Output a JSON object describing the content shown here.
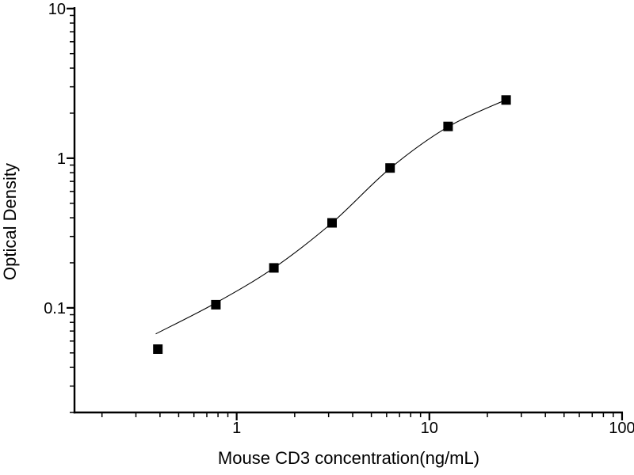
{
  "figure": {
    "background_color": "#ffffff",
    "foreground_color": "#000000"
  },
  "chart_data": {
    "type": "scatter",
    "title": "",
    "xlabel": "Mouse CD3 concentration(ng/mL)",
    "ylabel": "Optical Density",
    "x_scale": "log",
    "y_scale": "log",
    "xlim": [
      0.144,
      101
    ],
    "ylim": [
      0.02,
      10.1
    ],
    "grid": false,
    "legend": "none",
    "marker": "filled-square",
    "marker_color": "#000000",
    "marker_size_px": 12,
    "curve_color": "#000000",
    "axis_color": "#000000",
    "x_major_ticks": [
      {
        "value": 1,
        "label": "1"
      },
      {
        "value": 10,
        "label": "10"
      },
      {
        "value": 100,
        "label": "100"
      }
    ],
    "y_major_ticks": [
      {
        "value": 0.1,
        "label": "0.1"
      },
      {
        "value": 1,
        "label": "1"
      },
      {
        "value": 10,
        "label": "10"
      }
    ],
    "points": [
      {
        "concentration_ng_ml": 0.39,
        "optical_density": 0.053
      },
      {
        "concentration_ng_ml": 0.78,
        "optical_density": 0.105
      },
      {
        "concentration_ng_ml": 1.56,
        "optical_density": 0.185
      },
      {
        "concentration_ng_ml": 3.125,
        "optical_density": 0.37
      },
      {
        "concentration_ng_ml": 6.25,
        "optical_density": 0.86
      },
      {
        "concentration_ng_ml": 12.5,
        "optical_density": 1.63
      },
      {
        "concentration_ng_ml": 25,
        "optical_density": 2.45
      }
    ],
    "fit_curve_points": [
      {
        "concentration_ng_ml": 0.38,
        "optical_density": 0.067
      },
      {
        "concentration_ng_ml": 0.78,
        "optical_density": 0.108
      },
      {
        "concentration_ng_ml": 1.56,
        "optical_density": 0.185
      },
      {
        "concentration_ng_ml": 3.125,
        "optical_density": 0.37
      },
      {
        "concentration_ng_ml": 6.25,
        "optical_density": 0.855
      },
      {
        "concentration_ng_ml": 12.5,
        "optical_density": 1.62
      },
      {
        "concentration_ng_ml": 25,
        "optical_density": 2.46
      }
    ]
  }
}
